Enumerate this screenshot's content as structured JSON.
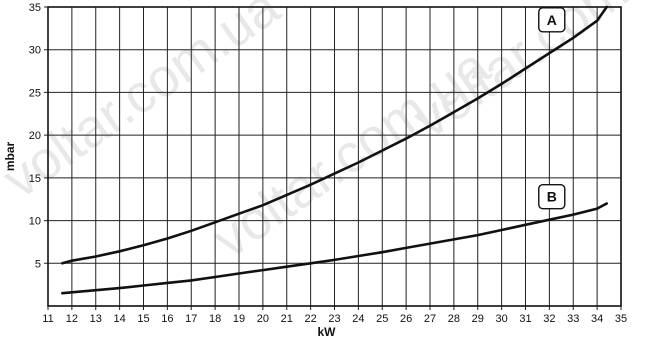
{
  "watermark": "voltar.com.ua",
  "chart_data": {
    "type": "line",
    "xlabel": "kW",
    "ylabel": "mbar",
    "xlim": [
      11,
      35
    ],
    "ylim": [
      0,
      35
    ],
    "xticks": [
      11,
      12,
      13,
      14,
      15,
      16,
      17,
      18,
      19,
      20,
      21,
      22,
      23,
      24,
      25,
      26,
      27,
      28,
      29,
      30,
      31,
      32,
      33,
      34,
      35
    ],
    "yticks": [
      5,
      10,
      15,
      20,
      25,
      30,
      35
    ],
    "grid": true,
    "series": [
      {
        "name": "A",
        "x": [
          11.6,
          12,
          13,
          14,
          15,
          16,
          17,
          18,
          19,
          20,
          21,
          22,
          23,
          24,
          25,
          26,
          27,
          28,
          29,
          30,
          31,
          32,
          33,
          34,
          34.4
        ],
        "y": [
          5.0,
          5.3,
          5.8,
          6.4,
          7.1,
          7.9,
          8.8,
          9.8,
          10.8,
          11.8,
          13.0,
          14.2,
          15.5,
          16.8,
          18.2,
          19.6,
          21.1,
          22.7,
          24.3,
          26.0,
          27.8,
          29.6,
          31.4,
          33.4,
          35.0
        ]
      },
      {
        "name": "B",
        "x": [
          11.6,
          12,
          13,
          14,
          15,
          16,
          17,
          18,
          19,
          20,
          21,
          22,
          23,
          24,
          25,
          26,
          27,
          28,
          29,
          30,
          31,
          32,
          33,
          34,
          34.4
        ],
        "y": [
          1.5,
          1.6,
          1.85,
          2.1,
          2.4,
          2.7,
          3.0,
          3.4,
          3.8,
          4.2,
          4.6,
          5.0,
          5.4,
          5.85,
          6.3,
          6.8,
          7.3,
          7.8,
          8.3,
          8.9,
          9.5,
          10.1,
          10.7,
          11.4,
          12.0
        ]
      }
    ],
    "annotations": [
      {
        "text": "A",
        "x": 32.1,
        "y": 33.5
      },
      {
        "text": "B",
        "x": 32.1,
        "y": 12.8
      }
    ]
  }
}
